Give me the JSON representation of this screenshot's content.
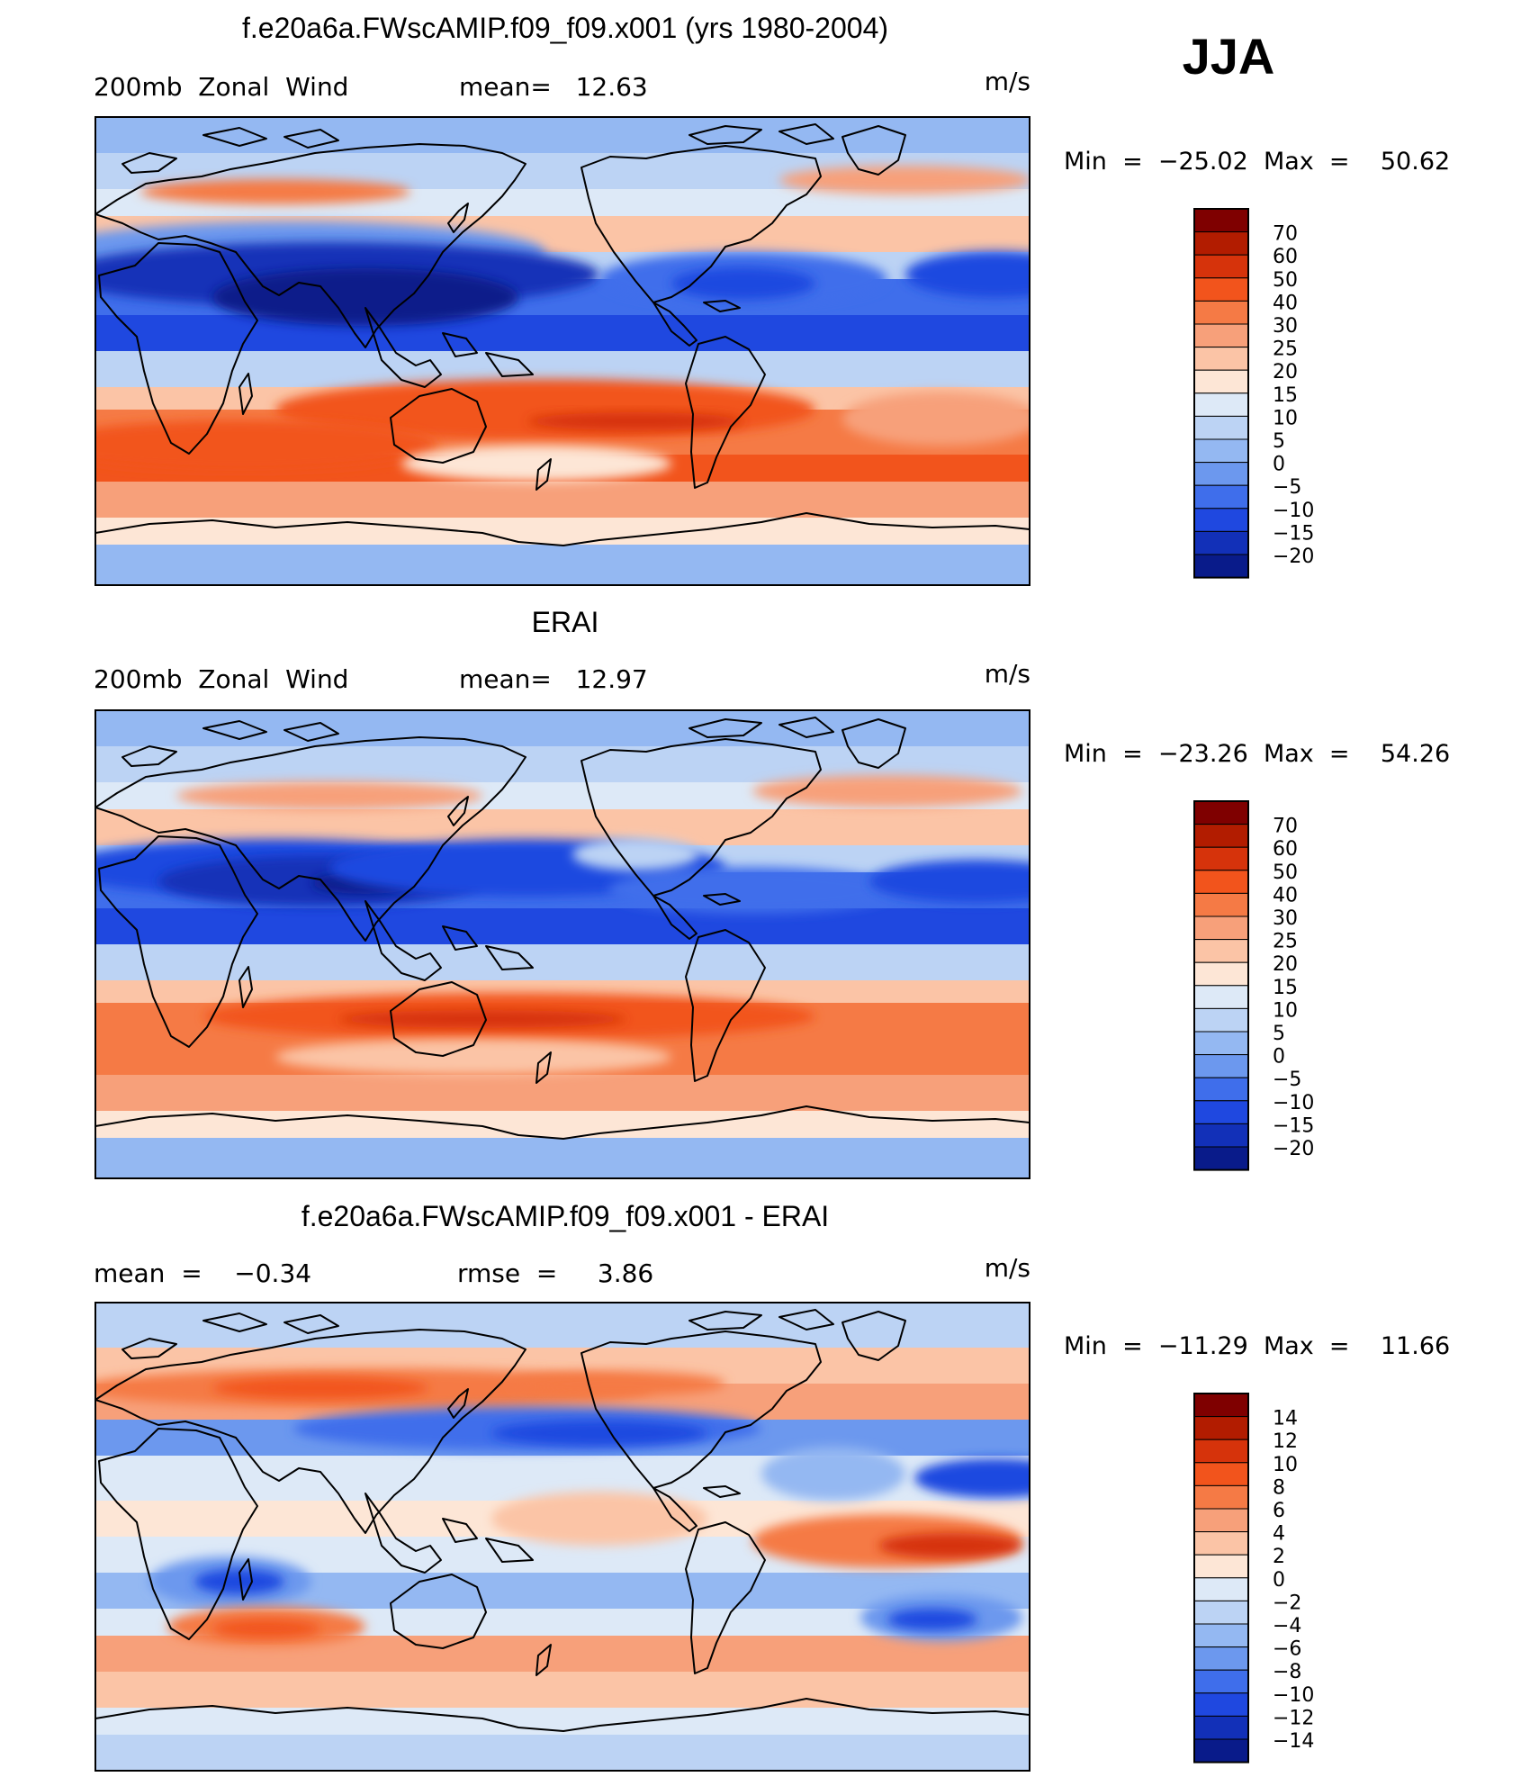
{
  "season": "JJA",
  "units": "m/s",
  "panels": [
    {
      "title": "f.e20a6a.FWscAMIP.f09_f09.x001 (yrs 1980-2004)",
      "left_label": "200mb  Zonal  Wind",
      "mid_label": "mean=   12.63",
      "units": "m/s",
      "minmax": "Min  =  −25.02  Max  =    50.62",
      "colorbar": {
        "labels": [
          "70",
          "60",
          "50",
          "40",
          "30",
          "25",
          "20",
          "15",
          "10",
          "5",
          "0",
          "−5",
          "−10",
          "−15",
          "−20"
        ],
        "colors": [
          "#7f0000",
          "#b21c00",
          "#d6330b",
          "#f2541c",
          "#f57a45",
          "#f7a07a",
          "#fbc4a6",
          "#fde6d6",
          "#dde9f7",
          "#bcd3f4",
          "#94b8f2",
          "#6c98ee",
          "#3f6eeb",
          "#1f48e0",
          "#1230b8",
          "#091b8a"
        ]
      }
    },
    {
      "title": "ERAI",
      "left_label": "200mb  Zonal  Wind",
      "mid_label": "mean=   12.97",
      "units": "m/s",
      "minmax": "Min  =  −23.26  Max  =    54.26",
      "colorbar": {
        "labels": [
          "70",
          "60",
          "50",
          "40",
          "30",
          "25",
          "20",
          "15",
          "10",
          "5",
          "0",
          "−5",
          "−10",
          "−15",
          "−20"
        ],
        "colors": [
          "#7f0000",
          "#b21c00",
          "#d6330b",
          "#f2541c",
          "#f57a45",
          "#f7a07a",
          "#fbc4a6",
          "#fde6d6",
          "#dde9f7",
          "#bcd3f4",
          "#94b8f2",
          "#6c98ee",
          "#3f6eeb",
          "#1f48e0",
          "#1230b8",
          "#091b8a"
        ]
      }
    },
    {
      "title": "f.e20a6a.FWscAMIP.f09_f09.x001 - ERAI",
      "left_label": "mean  =    −0.34",
      "mid_label": "rmse  =     3.86",
      "units": "m/s",
      "minmax": "Min  =  −11.29  Max  =    11.66",
      "colorbar": {
        "labels": [
          "14",
          "12",
          "10",
          "8",
          "6",
          "4",
          "2",
          "0",
          "−2",
          "−4",
          "−6",
          "−8",
          "−10",
          "−12",
          "−14"
        ],
        "colors": [
          "#7f0000",
          "#b21c00",
          "#d6330b",
          "#f2541c",
          "#f57a45",
          "#f7a07a",
          "#fbc4a6",
          "#fde6d6",
          "#dde9f7",
          "#bcd3f4",
          "#94b8f2",
          "#6c98ee",
          "#3f6eeb",
          "#1f48e0",
          "#1230b8",
          "#091b8a"
        ]
      }
    }
  ]
}
